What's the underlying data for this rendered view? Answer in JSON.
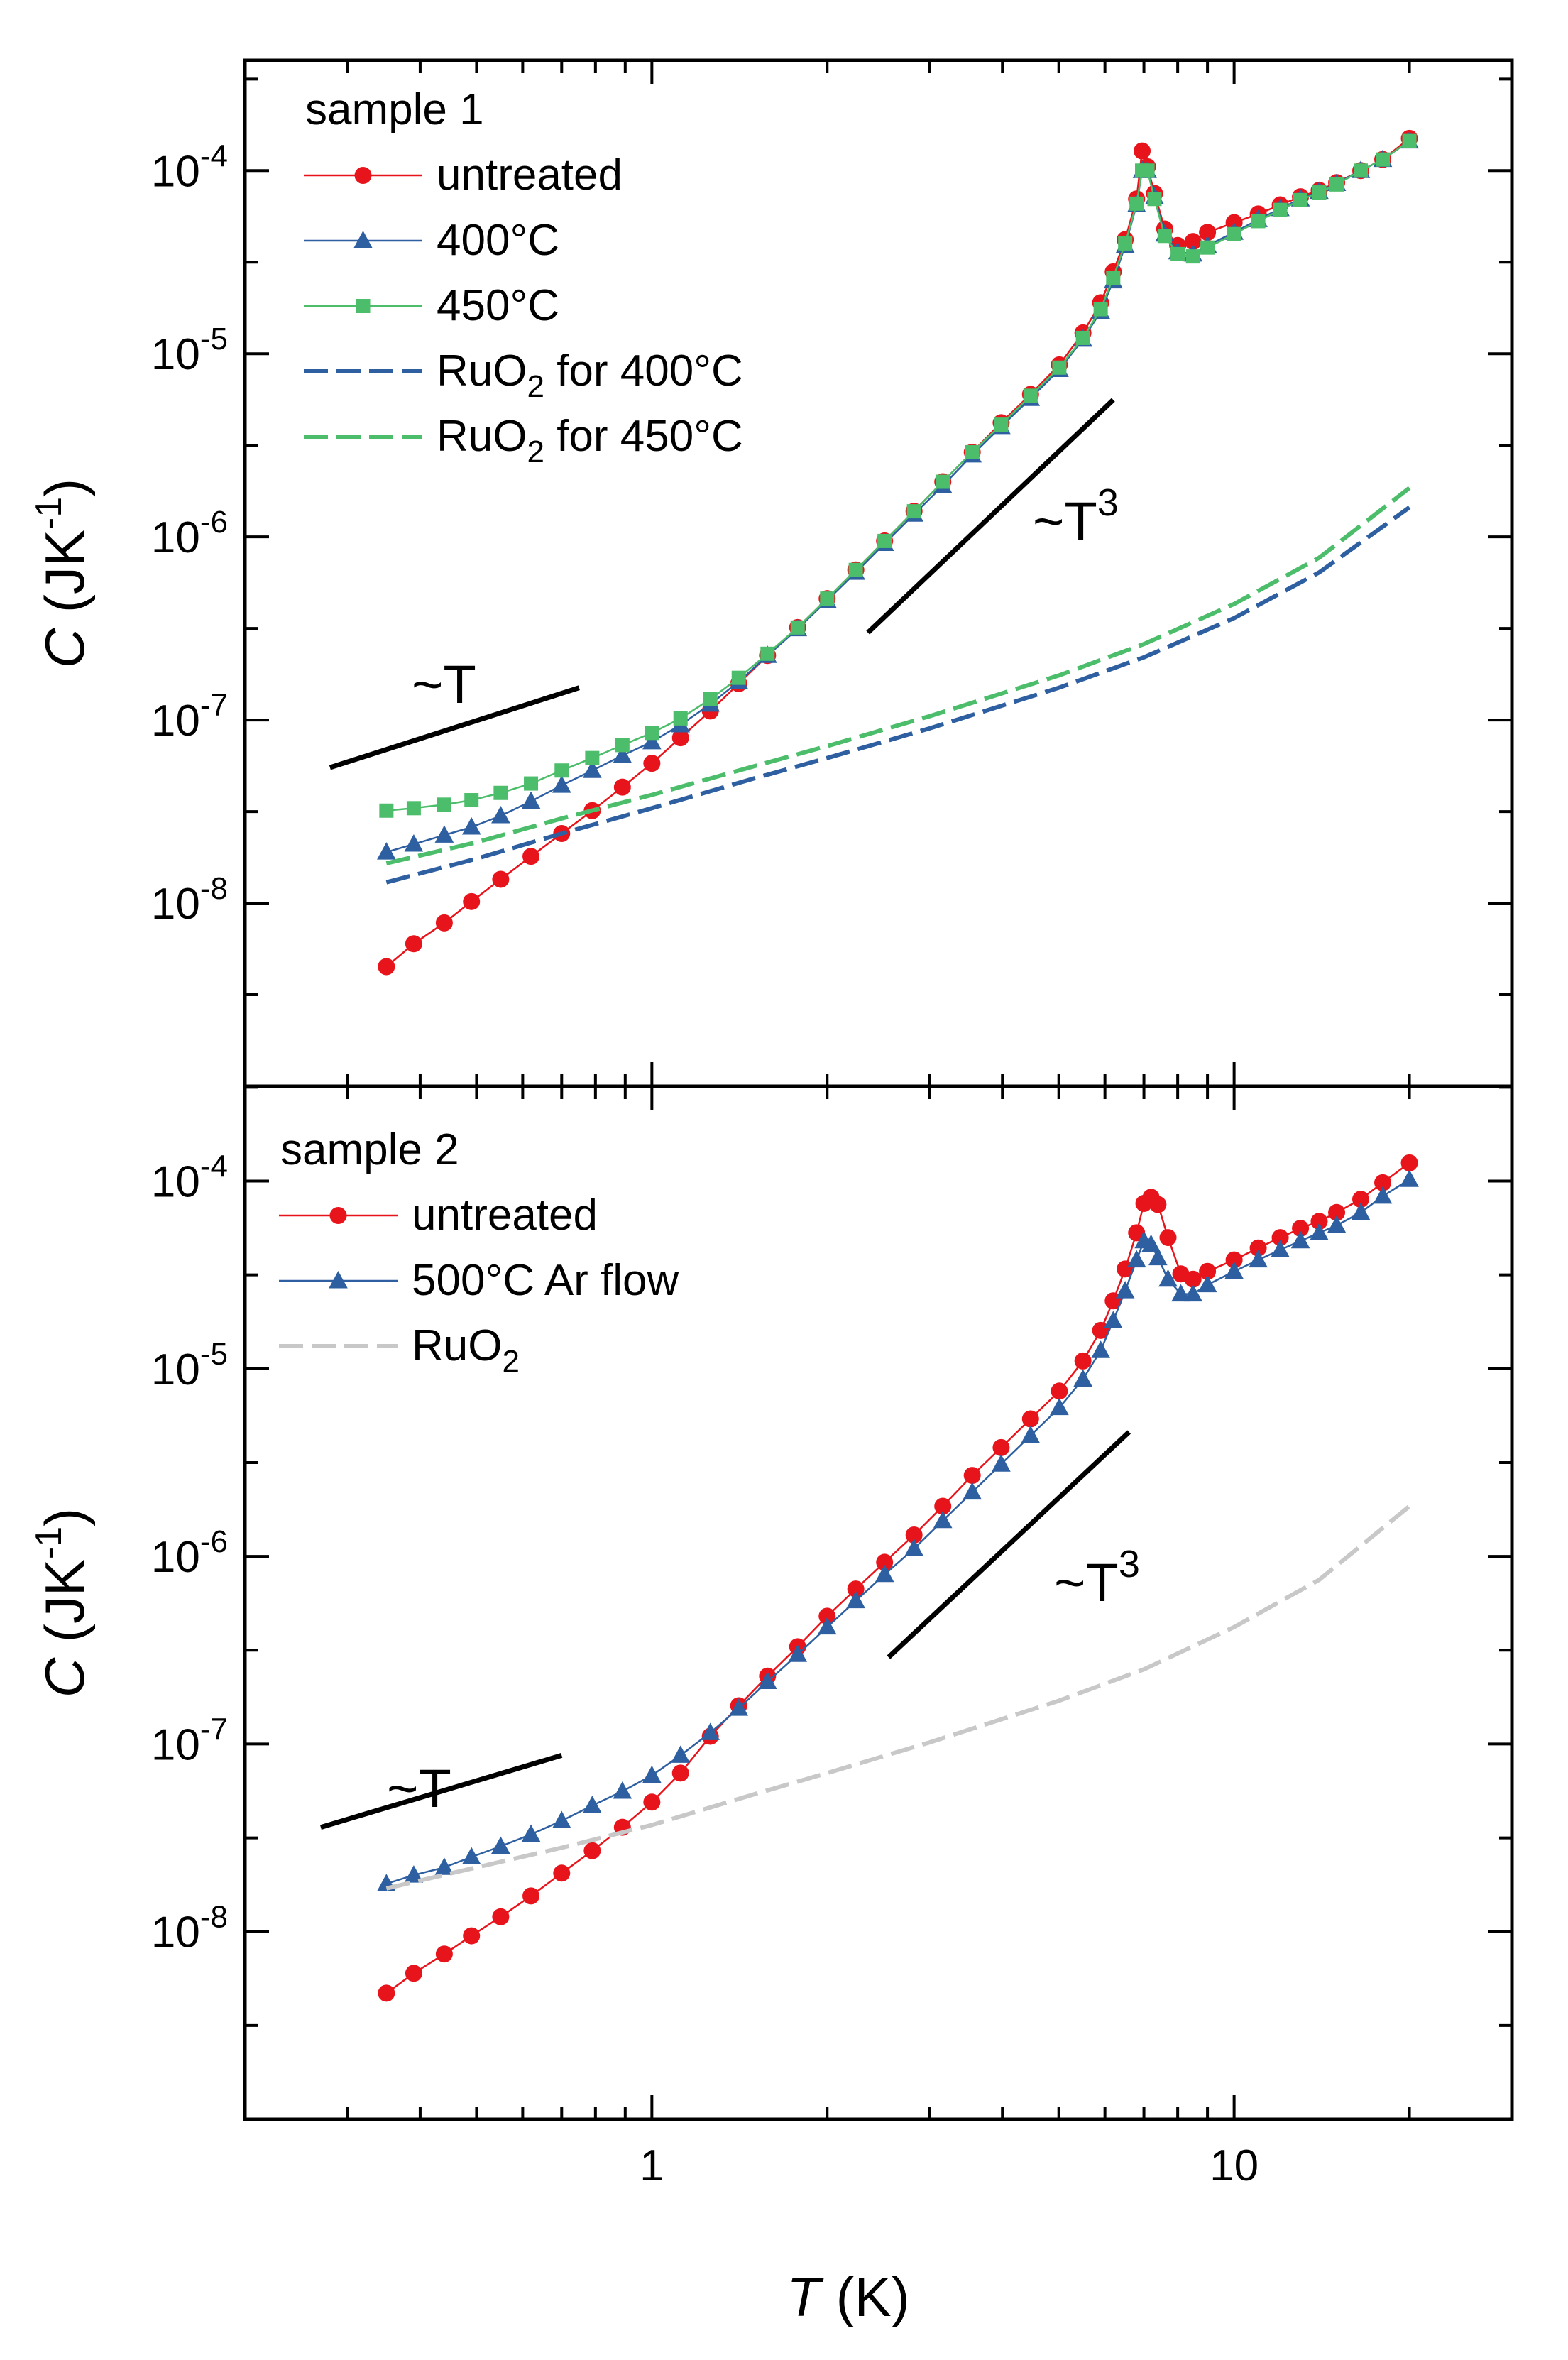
{
  "chart_data": [
    {
      "type": "scatter",
      "panel": "sample 1",
      "title": "sample 1",
      "xscale": "log",
      "yscale": "log",
      "xlim": [
        0.2,
        30
      ],
      "ylim": [
        1e-09,
        0.0004
      ],
      "xlabel": "T (K)",
      "ylabel": "C (JK-1)",
      "y_tick_values": [
        1e-08,
        1e-07,
        1e-06,
        1e-05,
        0.0001
      ],
      "y_tick_labels": [
        {
          "base": "10",
          "exp": "-8"
        },
        {
          "base": "10",
          "exp": "-7"
        },
        {
          "base": "10",
          "exp": "-6"
        },
        {
          "base": "10",
          "exp": "-5"
        },
        {
          "base": "10",
          "exp": "-4"
        }
      ],
      "series": [
        {
          "name": "untreated",
          "kind": "markers-line",
          "marker": "circle",
          "color": "#e8141c",
          "x": [
            0.35,
            0.39,
            0.44,
            0.49,
            0.55,
            0.62,
            0.7,
            0.79,
            0.89,
            1.0,
            1.12,
            1.26,
            1.41,
            1.58,
            1.78,
            2.0,
            2.24,
            2.51,
            2.82,
            3.16,
            3.55,
            3.98,
            4.47,
            5.01,
            5.5,
            5.9,
            6.2,
            6.5,
            6.8,
            6.95,
            7.1,
            7.3,
            7.6,
            8.0,
            8.5,
            9.0,
            10.0,
            11.0,
            12.0,
            13.0,
            14.0,
            15.0,
            16.5,
            18.0,
            20.0
          ],
          "y": [
            4.5e-09,
            6e-09,
            7.8e-09,
            1.02e-08,
            1.35e-08,
            1.8e-08,
            2.4e-08,
            3.2e-08,
            4.3e-08,
            5.8e-08,
            8e-08,
            1.12e-07,
            1.58e-07,
            2.25e-07,
            3.2e-07,
            4.6e-07,
            6.6e-07,
            9.5e-07,
            1.38e-06,
            2e-06,
            2.9e-06,
            4.2e-06,
            6e-06,
            8.7e-06,
            1.3e-05,
            1.9e-05,
            2.8e-05,
            4.2e-05,
            7e-05,
            0.000128,
            0.000105,
            7.5e-05,
            4.8e-05,
            3.9e-05,
            4.1e-05,
            4.6e-05,
            5.2e-05,
            5.8e-05,
            6.5e-05,
            7.2e-05,
            7.8e-05,
            8.6e-05,
            0.0001,
            0.000115,
            0.00015
          ]
        },
        {
          "name": "400°C",
          "kind": "markers-line",
          "marker": "triangle",
          "color": "#2e5fa0",
          "x": [
            0.35,
            0.39,
            0.44,
            0.49,
            0.55,
            0.62,
            0.7,
            0.79,
            0.89,
            1.0,
            1.12,
            1.26,
            1.41,
            1.58,
            1.78,
            2.0,
            2.24,
            2.51,
            2.82,
            3.16,
            3.55,
            3.98,
            4.47,
            5.01,
            5.5,
            5.9,
            6.2,
            6.5,
            6.8,
            6.95,
            7.1,
            7.3,
            7.6,
            8.0,
            8.5,
            9.0,
            10.0,
            11.0,
            12.0,
            13.0,
            14.0,
            15.0,
            16.5,
            18.0,
            20.0
          ],
          "y": [
            1.9e-08,
            2.1e-08,
            2.35e-08,
            2.6e-08,
            3e-08,
            3.6e-08,
            4.4e-08,
            5.3e-08,
            6.4e-08,
            7.6e-08,
            9.4e-08,
            1.22e-07,
            1.62e-07,
            2.25e-07,
            3.15e-07,
            4.5e-07,
            6.4e-07,
            9.2e-07,
            1.33e-06,
            1.9e-06,
            2.8e-06,
            4e-06,
            5.7e-06,
            8.2e-06,
            1.2e-05,
            1.7e-05,
            2.5e-05,
            3.9e-05,
            6.5e-05,
            0.0001,
            0.0001,
            7.2e-05,
            4.5e-05,
            3.6e-05,
            3.5e-05,
            3.9e-05,
            4.6e-05,
            5.4e-05,
            6.2e-05,
            7e-05,
            7.7e-05,
            8.5e-05,
            0.0001,
            0.000115,
            0.000145
          ]
        },
        {
          "name": "450°C",
          "kind": "markers-line",
          "marker": "square",
          "color": "#4cbd6a",
          "x": [
            0.35,
            0.39,
            0.44,
            0.49,
            0.55,
            0.62,
            0.7,
            0.79,
            0.89,
            1.0,
            1.12,
            1.26,
            1.41,
            1.58,
            1.78,
            2.0,
            2.24,
            2.51,
            2.82,
            3.16,
            3.55,
            3.98,
            4.47,
            5.01,
            5.5,
            5.9,
            6.2,
            6.5,
            6.8,
            6.95,
            7.1,
            7.3,
            7.6,
            8.0,
            8.5,
            9.0,
            10.0,
            11.0,
            12.0,
            13.0,
            14.0,
            15.0,
            16.5,
            18.0,
            20.0
          ],
          "y": [
            3.2e-08,
            3.3e-08,
            3.45e-08,
            3.65e-08,
            4e-08,
            4.5e-08,
            5.3e-08,
            6.2e-08,
            7.3e-08,
            8.5e-08,
            1.02e-07,
            1.3e-07,
            1.7e-07,
            2.3e-07,
            3.2e-07,
            4.6e-07,
            6.6e-07,
            9.5e-07,
            1.38e-06,
            2e-06,
            2.9e-06,
            4.1e-06,
            5.9e-06,
            8.4e-06,
            1.22e-05,
            1.75e-05,
            2.6e-05,
            4e-05,
            6.6e-05,
            0.0001,
            0.0001,
            7e-05,
            4.4e-05,
            3.5e-05,
            3.4e-05,
            3.8e-05,
            4.5e-05,
            5.3e-05,
            6.1e-05,
            6.9e-05,
            7.6e-05,
            8.4e-05,
            0.0001,
            0.000115,
            0.000145
          ]
        },
        {
          "name": "RuO2 for 400°C",
          "kind": "dashed-line",
          "color": "#2e5fa0",
          "x": [
            0.35,
            0.5,
            0.7,
            1.0,
            1.5,
            2.0,
            3.0,
            5.0,
            7.0,
            10.0,
            14.0,
            20.0
          ],
          "y": [
            1.3e-08,
            1.75e-08,
            2.4e-08,
            3.3e-08,
            4.8e-08,
            6.2e-08,
            9e-08,
            1.5e-07,
            2.2e-07,
            3.6e-07,
            6.4e-07,
            1.45e-06
          ]
        },
        {
          "name": "RuO2 for 450°C",
          "kind": "dashed-line",
          "color": "#4cbd6a",
          "x": [
            0.35,
            0.5,
            0.7,
            1.0,
            1.5,
            2.0,
            3.0,
            5.0,
            7.0,
            10.0,
            14.0,
            20.0
          ],
          "y": [
            1.65e-08,
            2.15e-08,
            2.9e-08,
            3.9e-08,
            5.6e-08,
            7.2e-08,
            1.05e-07,
            1.75e-07,
            2.6e-07,
            4.3e-07,
            7.7e-07,
            1.85e-06
          ]
        }
      ],
      "guides": [
        {
          "label_base": "~T",
          "label_exp": "",
          "x1": 0.28,
          "y1": 5.5e-08,
          "x2": 0.75,
          "y2": 1.5e-07
        },
        {
          "label_base": "~T",
          "label_exp": "3",
          "x1": 2.35,
          "y1": 3e-07,
          "x2": 6.2,
          "y2": 5.6e-06
        }
      ],
      "legend": {
        "position": "top-left",
        "header": "sample 1",
        "entries": [
          {
            "base": "untreated",
            "sub": "",
            "suffix": ""
          },
          {
            "base": "400°C",
            "sub": "",
            "suffix": ""
          },
          {
            "base": "450°C",
            "sub": "",
            "suffix": ""
          },
          {
            "base": "RuO",
            "sub": "2",
            "suffix": " for 400°C"
          },
          {
            "base": "RuO",
            "sub": "2",
            "suffix": " for 450°C"
          }
        ]
      }
    },
    {
      "type": "scatter",
      "panel": "sample 2",
      "title": "sample 2",
      "xscale": "log",
      "yscale": "log",
      "xlim": [
        0.2,
        30
      ],
      "ylim": [
        1e-09,
        0.00032
      ],
      "xlabel": "T (K)",
      "ylabel": "C (JK-1)",
      "x_tick_values": [
        1,
        10
      ],
      "x_tick_labels": [
        "1",
        "10"
      ],
      "y_tick_values": [
        1e-08,
        1e-07,
        1e-06,
        1e-05,
        0.0001
      ],
      "y_tick_labels": [
        {
          "base": "10",
          "exp": "-8"
        },
        {
          "base": "10",
          "exp": "-7"
        },
        {
          "base": "10",
          "exp": "-6"
        },
        {
          "base": "10",
          "exp": "-5"
        },
        {
          "base": "10",
          "exp": "-4"
        }
      ],
      "series": [
        {
          "name": "untreated",
          "kind": "markers-line",
          "marker": "circle",
          "color": "#e8141c",
          "x": [
            0.35,
            0.39,
            0.44,
            0.49,
            0.55,
            0.62,
            0.7,
            0.79,
            0.89,
            1.0,
            1.12,
            1.26,
            1.41,
            1.58,
            1.78,
            2.0,
            2.24,
            2.51,
            2.82,
            3.16,
            3.55,
            3.98,
            4.47,
            5.01,
            5.5,
            5.9,
            6.2,
            6.5,
            6.8,
            7.0,
            7.2,
            7.4,
            7.7,
            8.1,
            8.5,
            9.0,
            10.0,
            11.0,
            12.0,
            13.0,
            14.0,
            15.0,
            16.5,
            18.0,
            20.0
          ],
          "y": [
            4.7e-09,
            6e-09,
            7.6e-09,
            9.5e-09,
            1.2e-08,
            1.55e-08,
            2.05e-08,
            2.7e-08,
            3.6e-08,
            4.9e-08,
            7e-08,
            1.1e-07,
            1.6e-07,
            2.3e-07,
            3.3e-07,
            4.8e-07,
            6.7e-07,
            9.3e-07,
            1.3e-06,
            1.85e-06,
            2.7e-06,
            3.8e-06,
            5.4e-06,
            7.6e-06,
            1.1e-05,
            1.6e-05,
            2.3e-05,
            3.4e-05,
            5.3e-05,
            7.6e-05,
            8.2e-05,
            7.5e-05,
            5e-05,
            3.2e-05,
            3e-05,
            3.3e-05,
            3.8e-05,
            4.4e-05,
            5e-05,
            5.6e-05,
            6.1e-05,
            6.8e-05,
            8e-05,
            9.8e-05,
            0.000125
          ]
        },
        {
          "name": "500°C Ar flow",
          "kind": "markers-line",
          "marker": "triangle",
          "color": "#2e5fa0",
          "x": [
            0.35,
            0.39,
            0.44,
            0.49,
            0.55,
            0.62,
            0.7,
            0.79,
            0.89,
            1.0,
            1.12,
            1.26,
            1.41,
            1.58,
            1.78,
            2.0,
            2.24,
            2.51,
            2.82,
            3.16,
            3.55,
            3.98,
            4.47,
            5.01,
            5.5,
            5.9,
            6.2,
            6.5,
            6.8,
            7.0,
            7.2,
            7.4,
            7.7,
            8.1,
            8.5,
            9.0,
            10.0,
            11.0,
            12.0,
            13.0,
            14.0,
            15.0,
            16.5,
            18.0,
            20.0
          ],
          "y": [
            1.8e-08,
            2e-08,
            2.2e-08,
            2.5e-08,
            2.85e-08,
            3.3e-08,
            3.9e-08,
            4.7e-08,
            5.6e-08,
            6.8e-08,
            8.7e-08,
            1.15e-07,
            1.55e-07,
            2.15e-07,
            3e-07,
            4.2e-07,
            5.8e-07,
            8e-07,
            1.1e-06,
            1.55e-06,
            2.2e-06,
            3.1e-06,
            4.4e-06,
            6.2e-06,
            8.8e-06,
            1.25e-05,
            1.8e-05,
            2.6e-05,
            3.8e-05,
            4.8e-05,
            4.6e-05,
            3.9e-05,
            3e-05,
            2.5e-05,
            2.5e-05,
            2.8e-05,
            3.3e-05,
            3.8e-05,
            4.3e-05,
            4.8e-05,
            5.3e-05,
            5.8e-05,
            6.8e-05,
            8.3e-05,
            0.000102
          ]
        },
        {
          "name": "RuO2",
          "kind": "dashed-line",
          "color": "#c8c8c8",
          "x": [
            0.35,
            0.5,
            0.7,
            1.0,
            1.5,
            2.0,
            3.0,
            5.0,
            7.0,
            10.0,
            14.0,
            20.0
          ],
          "y": [
            1.7e-08,
            2.2e-08,
            2.8e-08,
            3.7e-08,
            5.4e-08,
            7e-08,
            1.02e-07,
            1.7e-07,
            2.5e-07,
            4.2e-07,
            7.5e-07,
            1.85e-06
          ]
        }
      ],
      "guides": [
        {
          "label_base": "~T",
          "label_exp": "",
          "x1": 0.27,
          "y1": 3.6e-08,
          "x2": 0.7,
          "y2": 8.7e-08
        },
        {
          "label_base": "~T",
          "label_exp": "3",
          "x1": 2.55,
          "y1": 2.9e-07,
          "x2": 6.6,
          "y2": 4.6e-06
        }
      ],
      "legend": {
        "position": "top-left",
        "header": "sample 2",
        "entries": [
          {
            "base": "untreated",
            "sub": "",
            "suffix": ""
          },
          {
            "base": "500°C Ar flow",
            "sub": "",
            "suffix": ""
          },
          {
            "base": "RuO",
            "sub": "2",
            "suffix": ""
          }
        ]
      }
    }
  ]
}
